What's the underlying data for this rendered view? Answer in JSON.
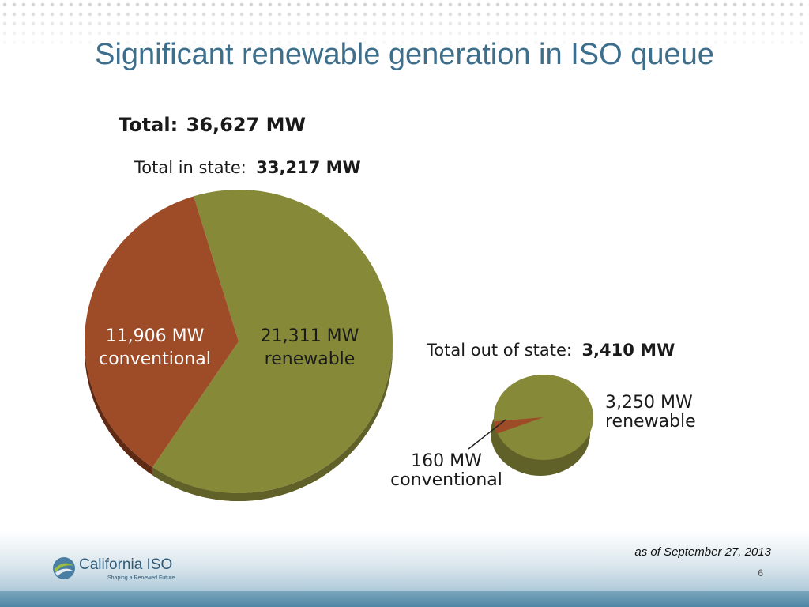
{
  "slide": {
    "title": "Significant renewable generation in ISO queue",
    "as_of": "as of September 27, 2013",
    "page_number": "6"
  },
  "logo": {
    "name": "California ISO",
    "tagline": "Shaping a Renewed Future"
  },
  "colors": {
    "renewable": "#868a38",
    "renewable_dark": "#5f6128",
    "conventional": "#9e4b27",
    "conventional_dark": "#5e2a14",
    "title": "#3d6f8c"
  },
  "chart_data": [
    {
      "type": "pie",
      "title_label": "Total:",
      "title_value": "36,627 MW",
      "subtitle_label": "Total in state:",
      "subtitle_value": "33,217 MW",
      "slices": [
        {
          "name": "renewable",
          "value": 21311,
          "value_label": "21,311 MW",
          "category_label": "renewable"
        },
        {
          "name": "conventional",
          "value": 11906,
          "value_label": "11,906 MW",
          "category_label": "conventional"
        }
      ]
    },
    {
      "type": "pie",
      "subtitle_label": "Total out of state:",
      "subtitle_value": "3,410 MW",
      "slices": [
        {
          "name": "renewable",
          "value": 3250,
          "value_label": "3,250 MW",
          "category_label": "renewable"
        },
        {
          "name": "conventional",
          "value": 160,
          "value_label": "160 MW",
          "category_label": "conventional"
        }
      ]
    }
  ]
}
